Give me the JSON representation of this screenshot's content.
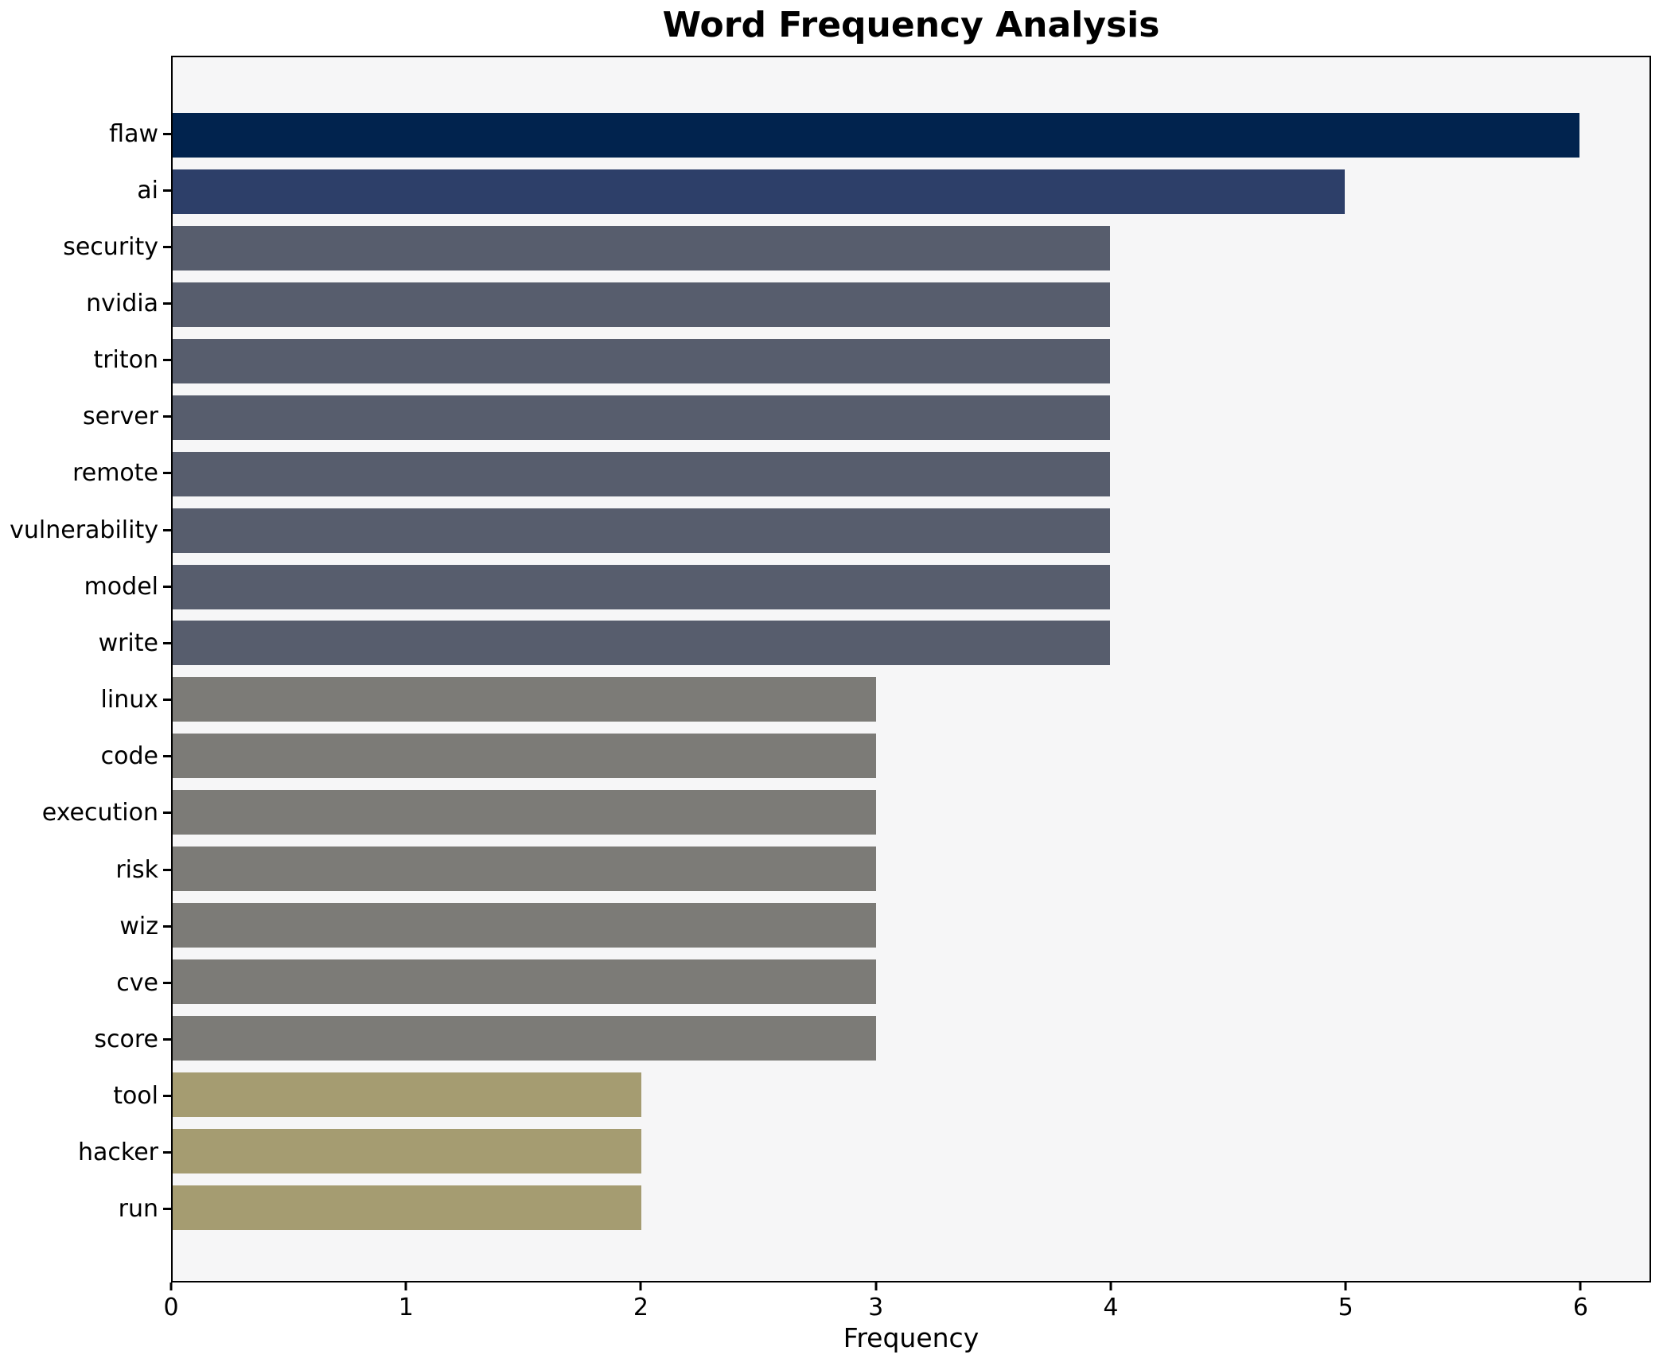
{
  "chart_data": {
    "type": "bar",
    "orientation": "horizontal",
    "title": "Word Frequency Analysis",
    "xlabel": "Frequency",
    "ylabel": "",
    "categories": [
      "flaw",
      "ai",
      "security",
      "nvidia",
      "triton",
      "server",
      "remote",
      "vulnerability",
      "model",
      "write",
      "linux",
      "code",
      "execution",
      "risk",
      "wiz",
      "cve",
      "score",
      "tool",
      "hacker",
      "run"
    ],
    "values": [
      6,
      5,
      4,
      4,
      4,
      4,
      4,
      4,
      4,
      4,
      3,
      3,
      3,
      3,
      3,
      3,
      3,
      2,
      2,
      2
    ],
    "bar_colors": [
      "#01234e",
      "#2d3f69",
      "#575d6d",
      "#575d6d",
      "#575d6d",
      "#575d6d",
      "#575d6d",
      "#575d6d",
      "#575d6d",
      "#575d6d",
      "#7c7b77",
      "#7c7b77",
      "#7c7b77",
      "#7c7b77",
      "#7c7b77",
      "#7c7b77",
      "#7c7b77",
      "#a59c71",
      "#a59c71",
      "#a59c71"
    ],
    "xlim": [
      0,
      6.3
    ],
    "x_ticks": [
      0,
      1,
      2,
      3,
      4,
      5,
      6
    ],
    "grid": false,
    "legend": "none",
    "plot_background": "#f6f6f7",
    "figure_background": "#ffffff",
    "spine_color": "#000000"
  }
}
